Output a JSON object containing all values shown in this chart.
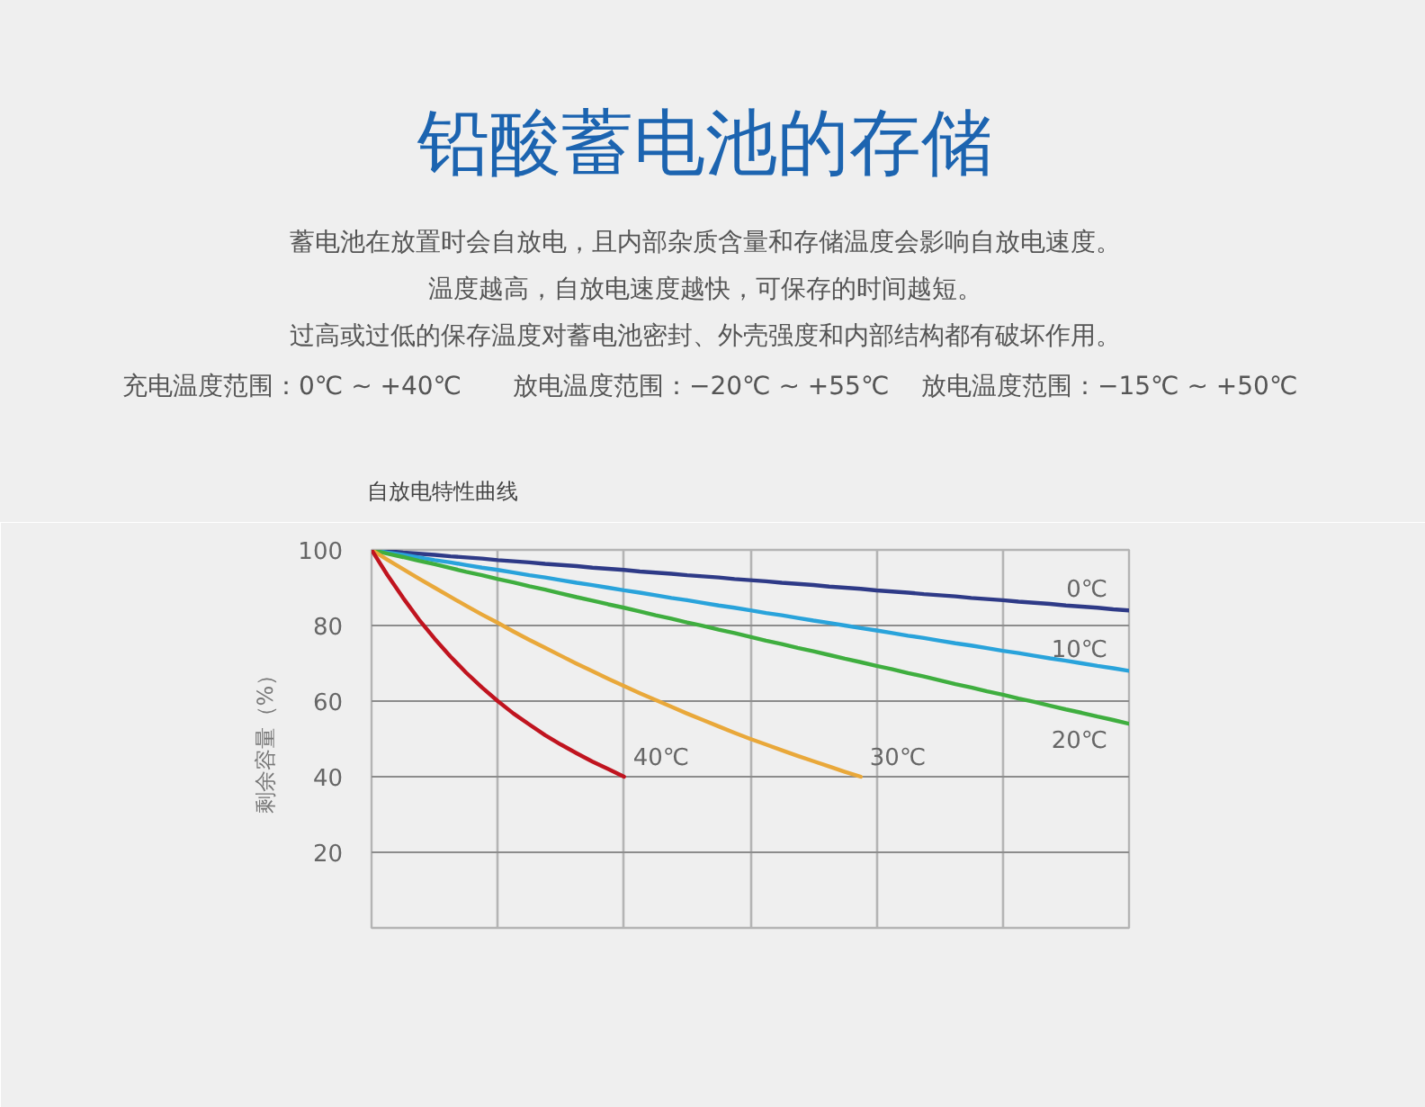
{
  "chart_data": {
    "type": "line",
    "title": "铅酸蓄电池的存储",
    "subtitle": "自放电特性曲线",
    "annotations": [
      "蓄电池在放置时会自放电，且内部杂质含量和存储温度会影响自放电速度。",
      "温度越高，自放电速度越快，可保存的时间越短。",
      "过高或过低的保存温度对蓄电池密封、外壳强度和内部结构都有破坏作用。",
      "充电温度范围：0℃ ~ +40℃",
      "放电温度范围：−20℃ ~ +55℃",
      "放电温度范围：−15℃ ~ +50℃"
    ],
    "ylabel": "剩余容量（%）",
    "categories": [
      null,
      null,
      null,
      null,
      null,
      null,
      null,
      null,
      null,
      null,
      null,
      null,
      null,
      null,
      null,
      null,
      null,
      null,
      null,
      null,
      null,
      null,
      null,
      null,
      null,
      null,
      null,
      null,
      null,
      null,
      null,
      null,
      null,
      null,
      null,
      null,
      null,
      null,
      null,
      null,
      null,
      null,
      null,
      null,
      null,
      null,
      null,
      null,
      null
    ],
    "ylim": [
      0,
      100
    ],
    "yticks": [
      20,
      40,
      60,
      80,
      100
    ],
    "tick_labels": "y",
    "grid": true,
    "series": [
      {
        "name": "0℃",
        "color": "#2e3a87",
        "values": [
          100,
          99.7,
          99.3,
          99,
          98.7,
          98.3,
          98,
          97.7,
          97.3,
          97,
          96.7,
          96.3,
          96,
          95.7,
          95.3,
          95,
          94.7,
          94.3,
          94,
          93.7,
          93.3,
          93,
          92.7,
          92.3,
          92,
          91.7,
          91.3,
          91,
          90.7,
          90.3,
          90,
          89.7,
          89.3,
          89,
          88.7,
          88.3,
          88,
          87.7,
          87.3,
          87,
          86.7,
          86.3,
          86,
          85.7,
          85.3,
          85,
          84.7,
          84.3,
          84
        ]
      },
      {
        "name": "10℃",
        "color": "#29a3db",
        "values": [
          100,
          99.3,
          98.7,
          98,
          97.3,
          96.7,
          96,
          95.3,
          94.7,
          94,
          93.3,
          92.7,
          92,
          91.3,
          90.7,
          90,
          89.3,
          88.7,
          88,
          87.3,
          86.7,
          86,
          85.3,
          84.7,
          84,
          83.3,
          82.7,
          82,
          81.3,
          80.7,
          80,
          79.3,
          78.7,
          78,
          77.3,
          76.7,
          76,
          75.3,
          74.7,
          74,
          73.3,
          72.7,
          72,
          71.3,
          70.7,
          70,
          69.3,
          68.7,
          68
        ]
      },
      {
        "name": "20℃",
        "color": "#3fae3f",
        "values": [
          100,
          99.0,
          98.1,
          97.1,
          96.2,
          95.2,
          94.2,
          93.3,
          92.3,
          91.4,
          90.4,
          89.5,
          88.5,
          87.5,
          86.6,
          85.6,
          84.7,
          83.7,
          82.7,
          81.8,
          80.8,
          79.9,
          78.9,
          78.0,
          77,
          76.0,
          75.1,
          74.1,
          73.2,
          72.2,
          71.2,
          70.3,
          69.3,
          68.4,
          67.4,
          66.5,
          65.5,
          64.5,
          63.6,
          62.6,
          61.7,
          60.7,
          59.8,
          58.8,
          57.8,
          56.9,
          55.9,
          55.0,
          54
        ]
      },
      {
        "name": "30℃",
        "color": "#e9a83a",
        "values": [
          100,
          97.4,
          94.9,
          92.4,
          90,
          87.6,
          85.2,
          82.9,
          80.7,
          78.4,
          76.2,
          74.1,
          72,
          69.9,
          67.9,
          65.9,
          64,
          62.1,
          60.3,
          58.5,
          56.7,
          55,
          53.3,
          51.6,
          50,
          48.5,
          47,
          45.5,
          44.1,
          42.7,
          41.3,
          40,
          null,
          null,
          null,
          null,
          null,
          null,
          null,
          null,
          null,
          null,
          null,
          null,
          null,
          null,
          null,
          null,
          null
        ]
      },
      {
        "name": "40℃",
        "color": "#c0141f",
        "values": [
          100,
          93.4,
          87.3,
          81.6,
          76.5,
          71.8,
          67.5,
          63.6,
          60,
          56.7,
          53.8,
          51.0,
          48.5,
          46.2,
          44.0,
          42.0,
          40,
          null,
          null,
          null,
          null,
          null,
          null,
          null,
          null,
          null,
          null,
          null,
          null,
          null,
          null,
          null,
          null,
          null,
          null,
          null,
          null,
          null,
          null,
          null,
          null,
          null,
          null,
          null,
          null,
          null,
          null,
          null,
          null
        ]
      }
    ]
  }
}
